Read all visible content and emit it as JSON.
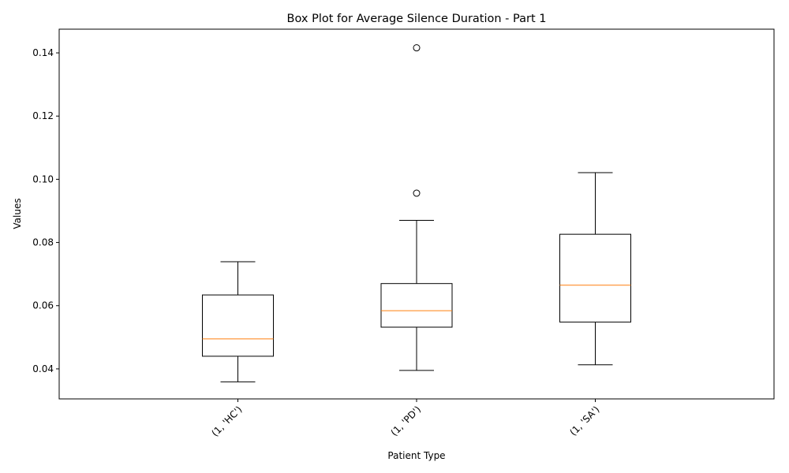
{
  "chart_data": {
    "type": "box",
    "title": "Box Plot for Average Silence Duration - Part 1",
    "xlabel": "Patient Type",
    "ylabel": "Values",
    "ylim": [
      0.0305,
      0.1475
    ],
    "yticks": [
      0.04,
      0.06,
      0.08,
      0.1,
      0.12,
      0.14
    ],
    "ytick_labels": [
      "0.04",
      "0.06",
      "0.08",
      "0.10",
      "0.12",
      "0.14"
    ],
    "categories": [
      "(1, 'HC')",
      "(1, 'PD')",
      "(1, 'SA')"
    ],
    "boxes": [
      {
        "category": "(1, 'HC')",
        "whisker_low": 0.0359,
        "q1": 0.044,
        "median": 0.0495,
        "q3": 0.0634,
        "whisker_high": 0.0739,
        "outliers": []
      },
      {
        "category": "(1, 'PD')",
        "whisker_low": 0.0395,
        "q1": 0.0532,
        "median": 0.0584,
        "q3": 0.067,
        "whisker_high": 0.087,
        "outliers": [
          0.0956,
          0.1416
        ]
      },
      {
        "category": "(1, 'SA')",
        "whisker_low": 0.0413,
        "q1": 0.0548,
        "median": 0.0665,
        "q3": 0.0826,
        "whisker_high": 0.1021,
        "outliers": []
      }
    ],
    "grid": false,
    "colors": {
      "box": "#000000",
      "median": "#ff7f0e",
      "outlier": "#000000"
    }
  }
}
